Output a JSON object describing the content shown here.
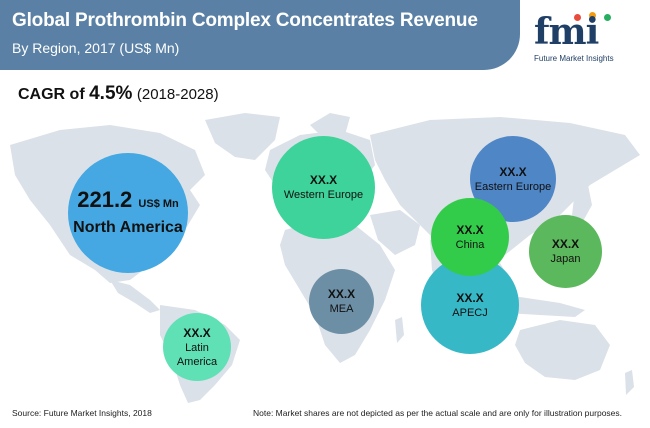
{
  "header": {
    "title": "Global Prothrombin Complex Concentrates Revenue",
    "subtitle": "By Region, 2017 (US$ Mn)"
  },
  "logo": {
    "letters": "fmi",
    "tagline": "Future Market Insights",
    "dot_colors": [
      "#e74c3c",
      "#f39c12",
      "#27ae60"
    ]
  },
  "cagr": {
    "prefix": "CAGR of",
    "value": "4.5%",
    "period": "(2018-2028)"
  },
  "regions": {
    "north_america": {
      "value": "221.2",
      "unit": "US$ Mn",
      "name": "North America",
      "color": "#45a8e2"
    },
    "western_europe": {
      "value": "XX.X",
      "name": "Western Europe",
      "color": "#3dd39a"
    },
    "eastern_europe": {
      "value": "XX.X",
      "name": "Eastern Europe",
      "color": "#4f86c6"
    },
    "china": {
      "value": "XX.X",
      "name": "China",
      "color": "#33cc4a"
    },
    "japan": {
      "value": "XX.X",
      "name": "Japan",
      "color": "#5cb85c"
    },
    "mea": {
      "value": "XX.X",
      "name": "MEA",
      "color": "#6d8fa6"
    },
    "apecj": {
      "value": "XX.X",
      "name": "APECJ",
      "color": "#37b8c7"
    },
    "latin_america": {
      "value": "XX.X",
      "name_line1": "Latin",
      "name_line2": "America",
      "color": "#5fe0b5"
    }
  },
  "footer": {
    "source": "Source: Future Market Insights, 2018",
    "note": "Note: Market shares are not depicted as per the actual scale and are only for illustration purposes."
  }
}
